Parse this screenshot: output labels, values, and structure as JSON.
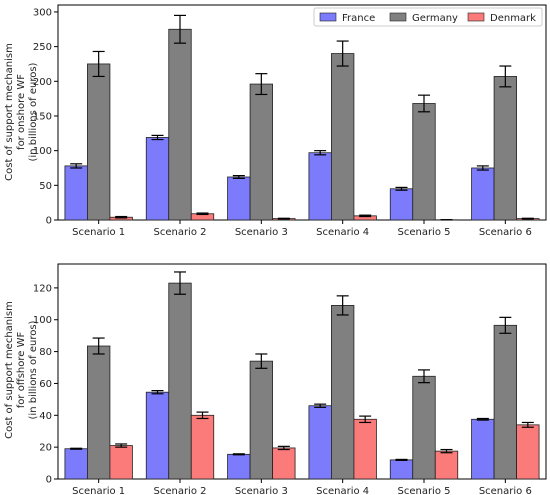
{
  "chart_data": [
    {
      "type": "bar",
      "categories": [
        "Scenario 1",
        "Scenario 2",
        "Scenario 3",
        "Scenario 4",
        "Scenario 5",
        "Scenario 6"
      ],
      "ylabel": [
        "Cost of support mechanism",
        "for onshore WF",
        "(in billions of euros)"
      ],
      "ylim": [
        0,
        310
      ],
      "yticks": [
        0,
        50,
        100,
        150,
        200,
        250,
        300
      ],
      "legend_position": "top-right",
      "series": [
        {
          "name": "France",
          "color": "#7b7bfb",
          "values": [
            78,
            119,
            62,
            97,
            45,
            75
          ],
          "errors": [
            3,
            3,
            2,
            3,
            2,
            3
          ]
        },
        {
          "name": "Germany",
          "color": "#808080",
          "values": [
            225,
            275,
            196,
            240,
            168,
            207
          ],
          "errors": [
            18,
            20,
            15,
            18,
            12,
            15
          ]
        },
        {
          "name": "Denmark",
          "color": "#fb7b7b",
          "values": [
            4,
            9,
            2,
            6,
            0.3,
            2
          ],
          "errors": [
            1,
            1,
            0.5,
            1,
            0.2,
            0.5
          ]
        }
      ]
    },
    {
      "type": "bar",
      "categories": [
        "Scenario 1",
        "Scenario 2",
        "Scenario 3",
        "Scenario 4",
        "Scenario 5",
        "Scenario 6"
      ],
      "ylabel": [
        "Cost of support mechanism",
        "for offshore WF",
        "(in billions of euros)"
      ],
      "ylim": [
        0,
        135
      ],
      "yticks": [
        0,
        20,
        40,
        60,
        80,
        100,
        120
      ],
      "series": [
        {
          "name": "France",
          "color": "#7b7bfb",
          "values": [
            19,
            54.5,
            15.5,
            46,
            12,
            37.5
          ],
          "errors": [
            0.3,
            1,
            0.3,
            1,
            0.3,
            0.5
          ]
        },
        {
          "name": "Germany",
          "color": "#808080",
          "values": [
            83.5,
            123,
            74,
            109,
            64.5,
            96.5
          ],
          "errors": [
            5,
            7,
            4.5,
            6,
            4,
            5
          ]
        },
        {
          "name": "Denmark",
          "color": "#fb7b7b",
          "values": [
            21,
            40,
            19.5,
            37.5,
            17.5,
            34
          ],
          "errors": [
            1,
            2,
            1,
            2,
            1,
            1.5
          ]
        }
      ]
    }
  ]
}
